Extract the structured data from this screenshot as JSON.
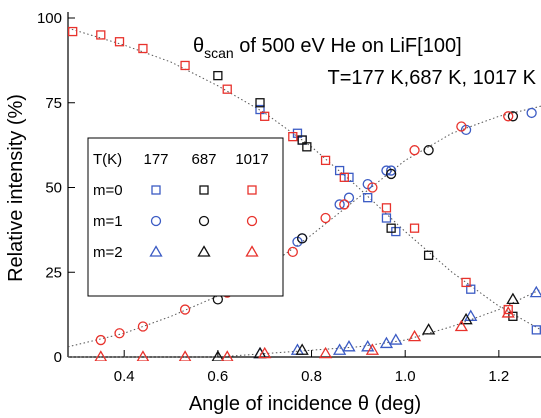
{
  "chart_data": {
    "type": "scatter",
    "title_symbol": "θ",
    "title_subscript": "scan",
    "title_rest": " of 500 eV He on LiF[100]",
    "subtitle": "T=177 K,687 K, 1017 K",
    "xlabel": "Angle of incidence θ (deg)",
    "ylabel": "Relative intensity (%)",
    "xlim": [
      0.28,
      1.29
    ],
    "ylim": [
      0,
      100
    ],
    "xticks": [
      0.4,
      0.6,
      0.8,
      {
        "value": 1,
        "label": "1.0"
      },
      1.2
    ],
    "yticks": [
      0,
      25,
      50,
      75,
      100
    ],
    "legend_header": "T(K)",
    "temperatures": [
      {
        "label": "177",
        "color": "#3b5bc4"
      },
      {
        "label": "687",
        "color": "#111111"
      },
      {
        "label": "1017",
        "color": "#e8322c"
      }
    ],
    "fit_color": "#555555",
    "series": [
      {
        "name": "m=0",
        "marker": "square",
        "groups": [
          {
            "x": [
              0.69,
              0.77,
              0.78,
              0.86,
              0.88,
              0.92,
              0.96,
              0.98,
              1.14,
              1.28
            ],
            "values": [
              73,
              66,
              64,
              55,
              53,
              47,
              41,
              37,
              20,
              8
            ]
          },
          {
            "x": [
              0.6,
              0.69,
              0.78,
              0.79,
              0.97,
              1.05,
              1.23
            ],
            "values": [
              83,
              75,
              64,
              62,
              38,
              30,
              12
            ]
          },
          {
            "x": [
              0.29,
              0.35,
              0.39,
              0.44,
              0.53,
              0.62,
              0.7,
              0.76,
              0.83,
              0.87,
              0.96,
              1.02,
              1.13,
              1.22
            ],
            "values": [
              96,
              95,
              93,
              91,
              86,
              79,
              71,
              65,
              58,
              53,
              44,
              38,
              22,
              14
            ]
          }
        ],
        "fit": {
          "x": [
            0.28,
            0.4,
            0.5,
            0.6,
            0.7,
            0.8,
            0.9,
            1.0,
            1.1,
            1.2,
            1.29
          ],
          "values": [
            97,
            92,
            87,
            80,
            72,
            62,
            50,
            37,
            25,
            15,
            8
          ]
        }
      },
      {
        "name": "m=1",
        "marker": "circle",
        "groups": [
          {
            "x": [
              0.69,
              0.77,
              0.78,
              0.86,
              0.88,
              0.92,
              0.96,
              0.97,
              1.13,
              1.27
            ],
            "values": [
              26,
              34,
              35,
              45,
              47,
              51,
              55,
              55,
              67,
              72
            ]
          },
          {
            "x": [
              0.6,
              0.69,
              0.78,
              0.97,
              1.05,
              1.23
            ],
            "values": [
              17,
              25,
              35,
              54,
              61,
              71
            ]
          },
          {
            "x": [
              0.35,
              0.39,
              0.44,
              0.53,
              0.62,
              0.7,
              0.76,
              0.83,
              0.87,
              0.93,
              1.02,
              1.12,
              1.22
            ],
            "values": [
              5,
              7,
              9,
              14,
              19,
              26,
              31,
              41,
              45,
              50,
              61,
              68,
              71
            ]
          }
        ],
        "fit": {
          "x": [
            0.28,
            0.4,
            0.5,
            0.6,
            0.7,
            0.8,
            0.9,
            1.0,
            1.1,
            1.2,
            1.29
          ],
          "values": [
            3,
            7,
            12,
            18,
            26,
            36,
            47,
            58,
            66,
            71,
            74
          ]
        }
      },
      {
        "name": "m=2",
        "marker": "triangle",
        "groups": [
          {
            "x": [
              0.69,
              0.77,
              0.86,
              0.88,
              0.92,
              0.96,
              0.98,
              1.14,
              1.28
            ],
            "values": [
              1,
              2,
              2,
              3,
              3,
              4,
              5,
              12,
              19
            ]
          },
          {
            "x": [
              0.6,
              0.69,
              0.78,
              1.05,
              1.13,
              1.23
            ],
            "values": [
              0,
              1,
              2,
              8,
              11,
              17
            ]
          },
          {
            "x": [
              0.35,
              0.44,
              0.53,
              0.62,
              0.7,
              0.83,
              0.93,
              1.02,
              1.12,
              1.22
            ],
            "values": [
              0,
              0,
              0,
              0,
              1,
              1,
              2,
              6,
              9,
              13
            ]
          }
        ],
        "fit": {
          "x": [
            0.28,
            0.4,
            0.5,
            0.6,
            0.7,
            0.8,
            0.9,
            1.0,
            1.1,
            1.2,
            1.29
          ],
          "values": [
            0,
            0,
            0,
            0,
            1,
            2,
            3,
            5,
            9,
            14,
            20
          ]
        }
      }
    ]
  }
}
